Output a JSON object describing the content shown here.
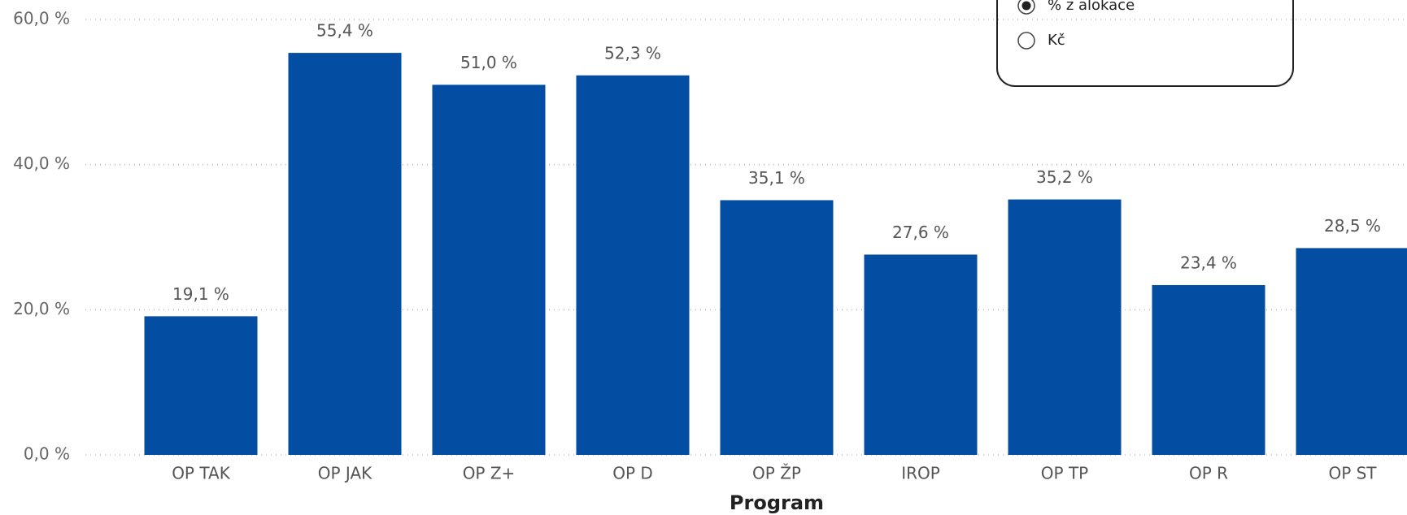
{
  "chart_data": {
    "type": "bar",
    "x_label": "Program",
    "categories": [
      "OP TAK",
      "OP JAK",
      "OP Z+",
      "OP D",
      "OP ŽP",
      "IROP",
      "OP TP",
      "OP R",
      "OP ST"
    ],
    "values": [
      19.1,
      55.4,
      51.0,
      52.3,
      35.1,
      27.6,
      35.2,
      23.4,
      28.5
    ],
    "value_labels": [
      "19,1 %",
      "55,4 %",
      "51,0 %",
      "52,3 %",
      "35,1 %",
      "27,6 %",
      "35,2 %",
      "23,4 %",
      "28,5 %"
    ],
    "color": "#034ea2",
    "ylim": [
      0,
      60
    ],
    "yticks": [
      {
        "value": 0,
        "label": "0,0 %"
      },
      {
        "value": 20,
        "label": "20,0 %"
      },
      {
        "value": 40,
        "label": "40,0 %"
      },
      {
        "value": 60,
        "label": "60,0 %"
      }
    ],
    "grid": true
  },
  "slicer": {
    "options": [
      "% z alokace",
      "Kč"
    ],
    "selected": 0
  }
}
